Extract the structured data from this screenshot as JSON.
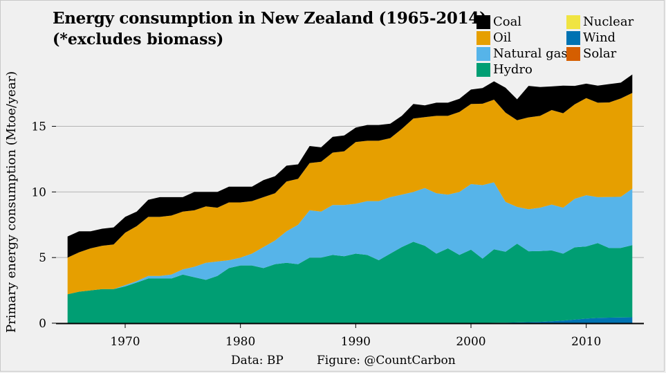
{
  "chart_data": {
    "type": "area",
    "stacked": true,
    "title": "Energy consumption in New Zealand (1965-2014)",
    "subtitle": "(*excludes biomass)",
    "ylabel": "Primary energy consumption (Mtoe/year)",
    "xlabel": "",
    "xlim": [
      1964,
      2015
    ],
    "ylim": [
      0,
      19.3
    ],
    "x_ticks": [
      1970,
      1980,
      1990,
      2000,
      2010
    ],
    "y_ticks": [
      0,
      5,
      10,
      15
    ],
    "grid": "horizontal",
    "legend_position": "top-right",
    "x": [
      1965,
      1966,
      1967,
      1968,
      1969,
      1970,
      1971,
      1972,
      1973,
      1974,
      1975,
      1976,
      1977,
      1978,
      1979,
      1980,
      1981,
      1982,
      1983,
      1984,
      1985,
      1986,
      1987,
      1988,
      1989,
      1990,
      1991,
      1992,
      1993,
      1994,
      1995,
      1996,
      1997,
      1998,
      1999,
      2000,
      2001,
      2002,
      2003,
      2004,
      2005,
      2006,
      2007,
      2008,
      2009,
      2010,
      2011,
      2012,
      2013,
      2014
    ],
    "series": [
      {
        "name": "Solar",
        "color": "#d55e00",
        "values": [
          0,
          0,
          0,
          0,
          0,
          0,
          0,
          0,
          0,
          0,
          0,
          0,
          0,
          0,
          0,
          0,
          0,
          0,
          0,
          0,
          0,
          0,
          0,
          0,
          0,
          0,
          0,
          0,
          0,
          0,
          0,
          0,
          0,
          0,
          0,
          0,
          0,
          0,
          0,
          0,
          0,
          0,
          0,
          0,
          0,
          0,
          0,
          0,
          0,
          0
        ]
      },
      {
        "name": "Wind",
        "color": "#0072b2",
        "values": [
          0,
          0,
          0,
          0,
          0,
          0,
          0,
          0,
          0,
          0,
          0,
          0,
          0,
          0,
          0,
          0,
          0,
          0,
          0,
          0,
          0,
          0,
          0,
          0,
          0,
          0,
          0,
          0,
          0,
          0,
          0,
          0,
          0,
          0,
          0,
          0,
          0.02,
          0.03,
          0.04,
          0.06,
          0.08,
          0.1,
          0.14,
          0.2,
          0.28,
          0.35,
          0.4,
          0.42,
          0.43,
          0.45
        ]
      },
      {
        "name": "Nuclear",
        "color": "#f0e442",
        "values": [
          0,
          0,
          0,
          0,
          0,
          0,
          0,
          0,
          0,
          0,
          0,
          0,
          0,
          0,
          0,
          0,
          0,
          0,
          0,
          0,
          0,
          0,
          0,
          0,
          0,
          0,
          0,
          0,
          0,
          0,
          0,
          0,
          0,
          0,
          0,
          0,
          0,
          0,
          0,
          0,
          0,
          0,
          0,
          0,
          0,
          0,
          0,
          0,
          0,
          0
        ]
      },
      {
        "name": "Hydro",
        "color": "#009e73",
        "values": [
          2.2,
          2.4,
          2.5,
          2.6,
          2.6,
          2.8,
          3.1,
          3.4,
          3.4,
          3.4,
          3.7,
          3.5,
          3.3,
          3.6,
          4.2,
          4.4,
          4.4,
          4.2,
          4.5,
          4.6,
          4.5,
          5.0,
          5.0,
          5.2,
          5.1,
          5.3,
          5.2,
          4.8,
          5.3,
          5.8,
          6.2,
          5.9,
          5.3,
          5.7,
          5.2,
          5.6,
          4.9,
          5.6,
          5.4,
          6.0,
          5.4,
          5.4,
          5.4,
          5.1,
          5.5,
          5.5,
          5.7,
          5.3,
          5.3,
          5.5
        ]
      },
      {
        "name": "Natural gas",
        "color": "#56b4e9",
        "values": [
          0,
          0,
          0,
          0,
          0,
          0.1,
          0.1,
          0.2,
          0.2,
          0.3,
          0.4,
          0.8,
          1.3,
          1.1,
          0.6,
          0.6,
          0.9,
          1.6,
          1.8,
          2.4,
          3.0,
          3.6,
          3.5,
          3.8,
          3.9,
          3.8,
          4.1,
          4.5,
          4.3,
          4.0,
          3.8,
          4.4,
          4.6,
          4.1,
          4.8,
          5.0,
          5.6,
          5.1,
          3.8,
          2.8,
          3.2,
          3.3,
          3.5,
          3.5,
          3.7,
          3.9,
          3.5,
          3.9,
          3.9,
          4.3
        ]
      },
      {
        "name": "Oil",
        "color": "#e69f00",
        "values": [
          2.8,
          3.0,
          3.2,
          3.3,
          3.4,
          4.0,
          4.2,
          4.5,
          4.5,
          4.5,
          4.4,
          4.3,
          4.3,
          4.1,
          4.4,
          4.2,
          4.0,
          3.8,
          3.6,
          3.8,
          3.5,
          3.6,
          3.8,
          4.0,
          4.1,
          4.7,
          4.6,
          4.6,
          4.5,
          5.0,
          5.6,
          5.4,
          5.9,
          6.0,
          6.1,
          6.1,
          6.2,
          6.3,
          6.8,
          6.6,
          7.0,
          7.0,
          7.2,
          7.2,
          7.2,
          7.4,
          7.2,
          7.2,
          7.5,
          7.3
        ]
      },
      {
        "name": "Coal",
        "color": "#000000",
        "values": [
          1.6,
          1.6,
          1.3,
          1.3,
          1.3,
          1.2,
          1.1,
          1.3,
          1.5,
          1.4,
          1.1,
          1.4,
          1.1,
          1.2,
          1.2,
          1.2,
          1.1,
          1.3,
          1.3,
          1.2,
          1.1,
          1.3,
          1.1,
          1.2,
          1.2,
          1.1,
          1.2,
          1.2,
          1.1,
          1.0,
          1.1,
          0.9,
          1.0,
          1.0,
          1.0,
          1.1,
          1.2,
          1.4,
          1.9,
          1.6,
          2.4,
          2.2,
          1.8,
          2.1,
          1.4,
          1.1,
          1.3,
          1.4,
          1.2,
          1.4
        ]
      }
    ],
    "legend": [
      {
        "name": "Coal",
        "color": "#000000"
      },
      {
        "name": "Oil",
        "color": "#e69f00"
      },
      {
        "name": "Natural gas",
        "color": "#56b4e9"
      },
      {
        "name": "Hydro",
        "color": "#009e73"
      },
      {
        "name": "Nuclear",
        "color": "#f0e442"
      },
      {
        "name": "Wind",
        "color": "#0072b2"
      },
      {
        "name": "Solar",
        "color": "#d55e00"
      }
    ]
  },
  "captions": {
    "source": "Data: BP",
    "figure": "Figure: @CountCarbon"
  }
}
